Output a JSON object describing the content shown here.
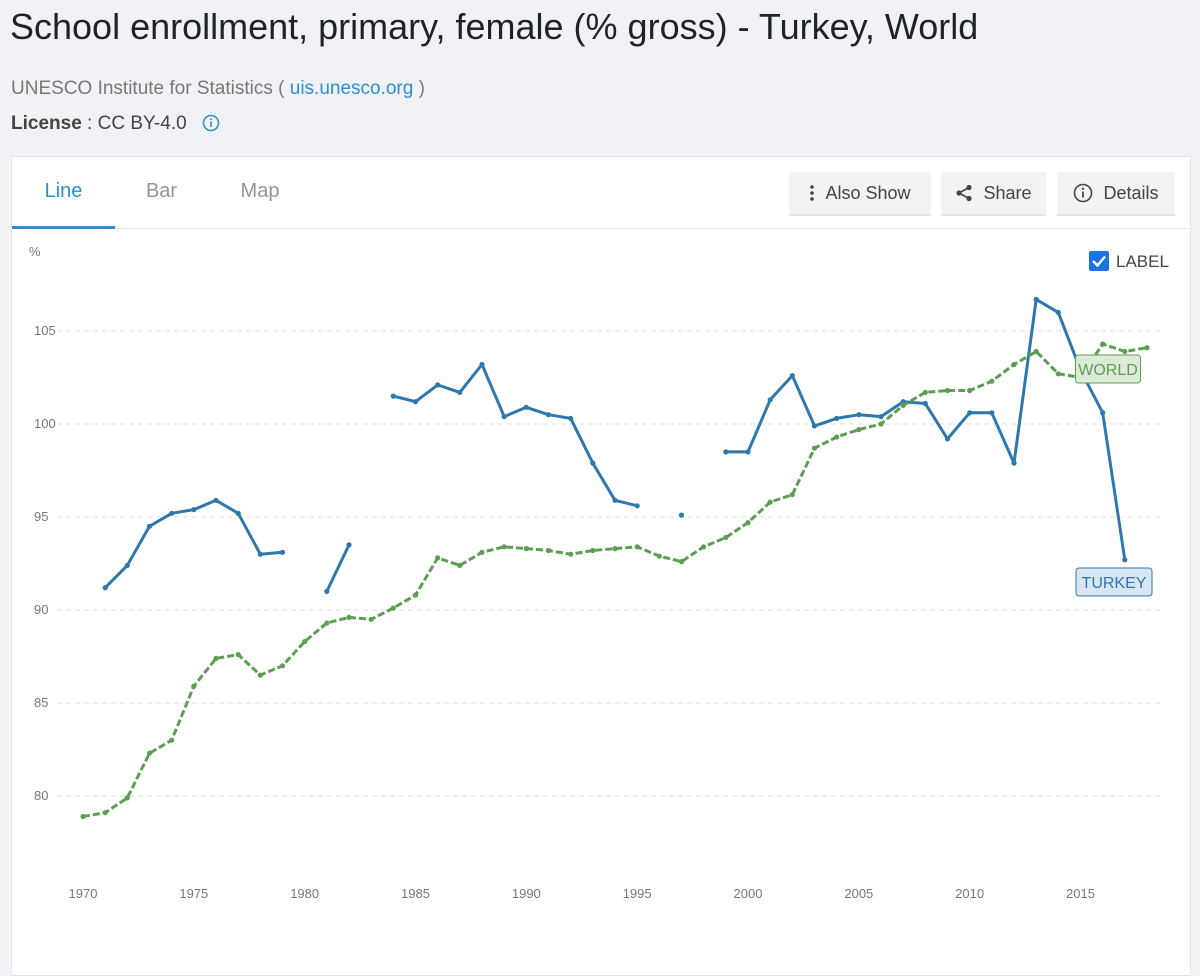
{
  "header": {
    "title": "School enrollment, primary, female (% gross) - Turkey, World",
    "source_prefix": "UNESCO Institute for Statistics (",
    "source_link": "uis.unesco.org",
    "source_suffix": ")",
    "license_key": "License",
    "license_sep": " : ",
    "license_value": "CC BY-4.0"
  },
  "tabs": [
    {
      "label": "Line",
      "active": true
    },
    {
      "label": "Bar",
      "active": false
    },
    {
      "label": "Map",
      "active": false
    }
  ],
  "toolbar": {
    "also_show": "Also Show",
    "share": "Share",
    "details": "Details"
  },
  "label_toggle": {
    "text": "LABEL",
    "checked": true
  },
  "colors": {
    "accent": "#2c8fd1",
    "turkey": "#2f78ad",
    "world": "#5d9e54",
    "turkey_label_bg": "#d7e6f2",
    "world_label_bg": "#dcebd7"
  },
  "chart_data": {
    "type": "line",
    "ylabel": "%",
    "ylim": [
      77,
      108
    ],
    "xlim": [
      1970,
      2018
    ],
    "y_ticks": [
      80,
      85,
      90,
      95,
      100,
      105
    ],
    "x_ticks": [
      1970,
      1975,
      1980,
      1985,
      1990,
      1995,
      2000,
      2005,
      2010,
      2015
    ],
    "grid": "horizontal-dashed",
    "x": [
      1970,
      1971,
      1972,
      1973,
      1974,
      1975,
      1976,
      1977,
      1978,
      1979,
      1980,
      1981,
      1982,
      1983,
      1984,
      1985,
      1986,
      1987,
      1988,
      1989,
      1990,
      1991,
      1992,
      1993,
      1994,
      1995,
      1996,
      1997,
      1998,
      1999,
      2000,
      2001,
      2002,
      2003,
      2004,
      2005,
      2006,
      2007,
      2008,
      2009,
      2010,
      2011,
      2012,
      2013,
      2014,
      2015,
      2016,
      2017,
      2018
    ],
    "series": [
      {
        "name": "TURKEY",
        "values": [
          null,
          91.2,
          92.4,
          94.5,
          95.2,
          95.4,
          95.9,
          95.2,
          93.0,
          93.1,
          null,
          91.0,
          93.5,
          null,
          101.5,
          101.2,
          102.1,
          101.7,
          103.2,
          100.4,
          100.9,
          100.5,
          100.3,
          97.9,
          95.9,
          95.6,
          null,
          95.1,
          null,
          98.5,
          98.5,
          101.3,
          102.6,
          99.9,
          100.3,
          100.5,
          100.4,
          101.2,
          101.1,
          99.2,
          100.6,
          100.6,
          97.9,
          106.7,
          106.0,
          102.9,
          100.6,
          92.7,
          null
        ]
      },
      {
        "name": "WORLD",
        "values": [
          78.9,
          79.1,
          79.9,
          82.3,
          83.0,
          85.9,
          87.4,
          87.6,
          86.5,
          87.0,
          88.3,
          89.3,
          89.6,
          89.5,
          90.1,
          90.8,
          92.8,
          92.4,
          93.1,
          93.4,
          93.3,
          93.2,
          93.0,
          93.2,
          93.3,
          93.4,
          92.9,
          92.6,
          93.4,
          93.9,
          94.7,
          95.8,
          96.2,
          98.7,
          99.3,
          99.7,
          100.0,
          101.0,
          101.7,
          101.8,
          101.8,
          102.3,
          103.2,
          103.9,
          102.7,
          102.5,
          104.3,
          103.9,
          104.1
        ]
      }
    ]
  }
}
